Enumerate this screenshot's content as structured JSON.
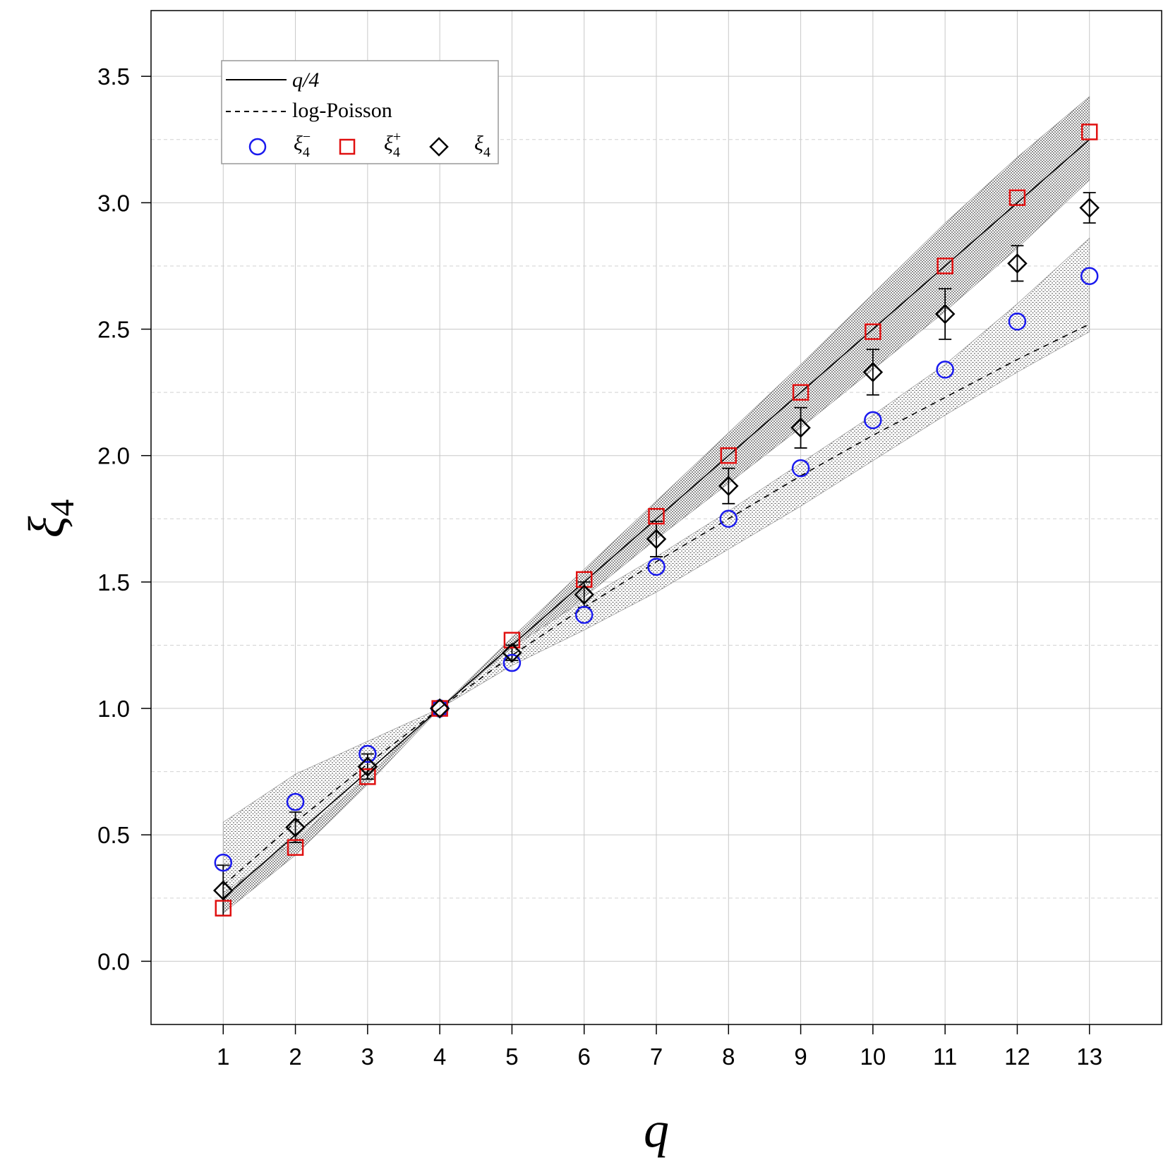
{
  "chart_data": {
    "type": "scatter",
    "xlabel": "q",
    "ylabel": "ξ",
    "ylabel_subscript": "4",
    "xlim": [
      0,
      14
    ],
    "ylim": [
      -0.25,
      3.76
    ],
    "xticks": [
      1,
      2,
      3,
      4,
      5,
      6,
      7,
      8,
      9,
      10,
      11,
      12,
      13
    ],
    "yticks": [
      0.0,
      0.5,
      1.0,
      1.5,
      2.0,
      2.5,
      3.0,
      3.5
    ],
    "ytick_labels": [
      "0.0",
      "0.5",
      "1.0",
      "1.5",
      "2.0",
      "2.5",
      "3.0",
      "3.5"
    ],
    "grid": true,
    "legend_position": "top-left",
    "lines": [
      {
        "name": "q/4",
        "style": "solid",
        "color": "#000000",
        "x": [
          1,
          2,
          3,
          4,
          5,
          6,
          7,
          8,
          9,
          10,
          11,
          12,
          13
        ],
        "y": [
          0.25,
          0.5,
          0.75,
          1.0,
          1.25,
          1.5,
          1.75,
          2.0,
          2.25,
          2.5,
          2.75,
          3.0,
          3.25
        ]
      },
      {
        "name": "log-Poisson",
        "style": "dashed",
        "color": "#000000",
        "x": [
          1,
          2,
          3,
          4,
          5,
          6,
          7,
          8,
          9,
          10,
          11,
          12,
          13
        ],
        "y": [
          0.3,
          0.55,
          0.78,
          1.0,
          1.21,
          1.4,
          1.58,
          1.75,
          1.92,
          2.08,
          2.23,
          2.38,
          2.52
        ]
      }
    ],
    "bands": [
      {
        "x": [
          1,
          2,
          3,
          4,
          5,
          6,
          7,
          8,
          9,
          10,
          11,
          12,
          13
        ],
        "lower": [
          0.19,
          0.42,
          0.7,
          1.0,
          1.22,
          1.44,
          1.67,
          1.89,
          2.11,
          2.34,
          2.57,
          2.82,
          3.09
        ],
        "upper": [
          0.3,
          0.55,
          0.78,
          1.0,
          1.28,
          1.55,
          1.82,
          2.09,
          2.36,
          2.64,
          2.92,
          3.18,
          3.42
        ]
      },
      {
        "x": [
          1,
          2,
          3,
          4,
          5,
          6,
          7,
          8,
          9,
          10,
          11,
          12,
          13
        ],
        "lower": [
          0.27,
          0.48,
          0.73,
          1.0,
          1.17,
          1.31,
          1.46,
          1.63,
          1.8,
          1.98,
          2.16,
          2.33,
          2.49
        ],
        "upper": [
          0.55,
          0.74,
          0.87,
          1.0,
          1.24,
          1.43,
          1.6,
          1.78,
          1.97,
          2.16,
          2.36,
          2.6,
          2.86
        ]
      }
    ],
    "series": [
      {
        "name": "ξ₄⁻",
        "marker": "circle",
        "color": "#1a1aee",
        "x": [
          1,
          2,
          3,
          4,
          5,
          6,
          7,
          8,
          9,
          10,
          11,
          12,
          13
        ],
        "y": [
          0.39,
          0.63,
          0.82,
          1.0,
          1.18,
          1.37,
          1.56,
          1.75,
          1.95,
          2.14,
          2.34,
          2.53,
          2.71
        ]
      },
      {
        "name": "ξ₄⁺",
        "marker": "square",
        "color": "#e01010",
        "x": [
          1,
          2,
          3,
          4,
          5,
          6,
          7,
          8,
          9,
          10,
          11,
          12,
          13
        ],
        "y": [
          0.21,
          0.45,
          0.73,
          1.0,
          1.27,
          1.51,
          1.76,
          2.0,
          2.25,
          2.49,
          2.75,
          3.02,
          3.28
        ]
      },
      {
        "name": "ξ₄",
        "marker": "diamond",
        "color": "#000000",
        "x": [
          1,
          2,
          3,
          4,
          5,
          6,
          7,
          8,
          9,
          10,
          11,
          12,
          13
        ],
        "y": [
          0.28,
          0.53,
          0.77,
          1.0,
          1.22,
          1.45,
          1.67,
          1.88,
          2.11,
          2.33,
          2.56,
          2.76,
          2.98
        ],
        "err": [
          0.1,
          0.06,
          0.05,
          0.0,
          0.03,
          0.05,
          0.07,
          0.07,
          0.08,
          0.09,
          0.1,
          0.07,
          0.06
        ]
      }
    ],
    "legend": {
      "line1": "q/4",
      "line2": "log-Poisson",
      "sym": "ξ",
      "sub": "4",
      "sup_minus": "−",
      "sup_plus": "+"
    }
  }
}
